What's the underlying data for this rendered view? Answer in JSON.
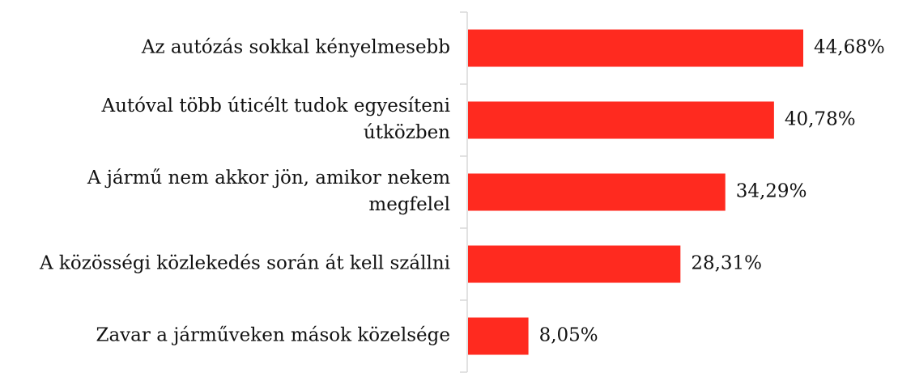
{
  "chart_data": {
    "type": "bar",
    "orientation": "horizontal",
    "categories": [
      "Az autózás sokkal kényelmesebb",
      "Autóval több úticélt tudok egyesíteni\nútközben",
      "A jármű nem akkor jön, amikor nekem\nmegfelel",
      "A közösségi közlekedés során át kell szállni",
      "Zavar a járműveken mások közelsége"
    ],
    "values": [
      44.68,
      40.78,
      34.29,
      28.31,
      8.05
    ],
    "value_labels": [
      "44,68%",
      "40,78%",
      "34,29%",
      "28,31%",
      "8,05%"
    ],
    "color": "#ff2a1f"
  }
}
